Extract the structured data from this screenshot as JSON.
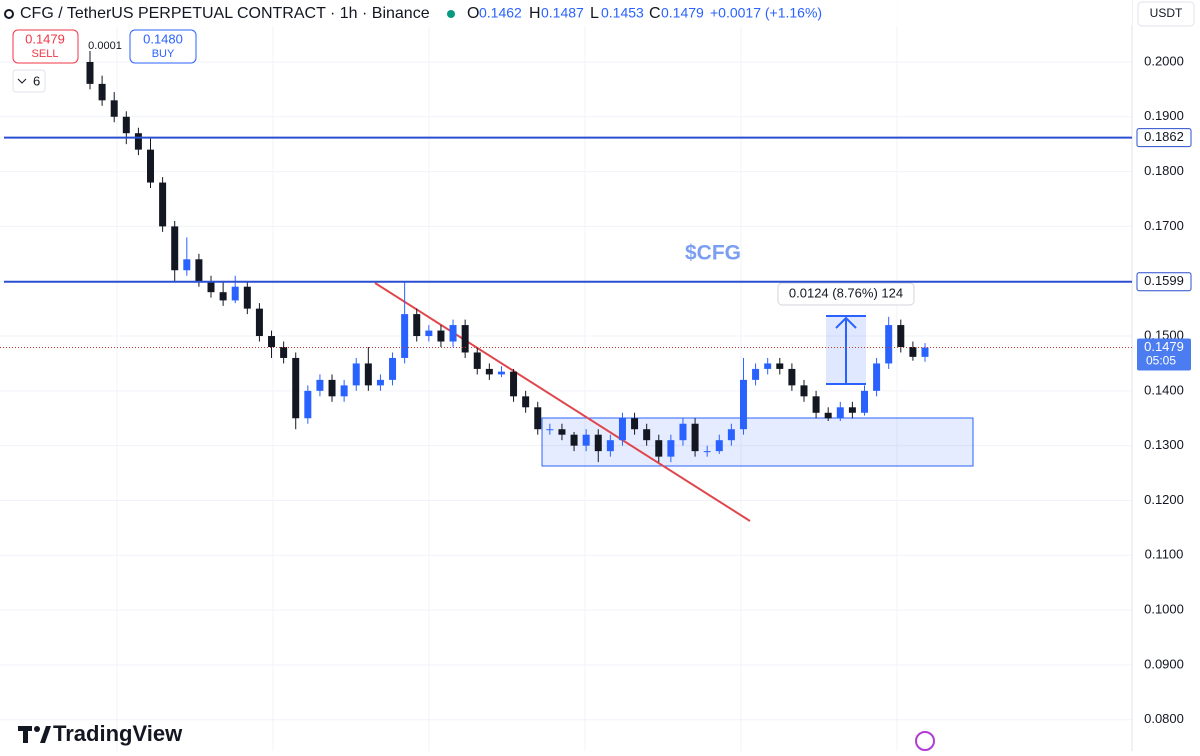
{
  "chart_data": {
    "type": "candlestick",
    "title": "CFG / TetherUS PERPETUAL CONTRACT · 1h · Binance",
    "ohlc_header": {
      "o_label": "O",
      "o": "0.1462",
      "h_label": "H",
      "h": "0.1487",
      "l_label": "L",
      "l": "0.1453",
      "c_label": "C",
      "c": "0.1479",
      "change": "+0.0017 (+1.16%)"
    },
    "sell": {
      "price": "0.1479",
      "label": "SELL"
    },
    "buy": {
      "price": "0.1480",
      "label": "BUY"
    },
    "spread": "0.0001",
    "indicators_count": "6",
    "currency": "USDT",
    "annotation": "$CFG",
    "measure_label": "0.0124 (8.76%) 124",
    "brand": "TradingView",
    "up_color": "#2962ff",
    "down_color": "#131722",
    "open": [
      0.2,
      0.196,
      0.193,
      0.19,
      0.187,
      0.184,
      0.178,
      0.17,
      0.162,
      0.164,
      0.16,
      0.158,
      0.1565,
      0.159,
      0.155,
      0.15,
      0.148,
      0.146,
      0.135,
      0.14,
      0.142,
      0.139,
      0.141,
      0.145,
      0.141,
      0.142,
      0.146,
      0.154,
      0.15,
      0.151,
      0.149,
      0.152,
      0.147,
      0.144,
      0.143,
      0.1435,
      0.139,
      0.137,
      0.133,
      0.133,
      0.132,
      0.13,
      0.132,
      0.129,
      0.131,
      0.135,
      0.133,
      0.131,
      0.128,
      0.131,
      0.134,
      0.129,
      0.129,
      0.131,
      0.133,
      0.142,
      0.144,
      0.145,
      0.144,
      0.141,
      0.139,
      0.136,
      0.135,
      0.137,
      0.136,
      0.14,
      0.145,
      0.152,
      0.148,
      0.1462
    ],
    "high": [
      0.202,
      0.1975,
      0.1945,
      0.191,
      0.188,
      0.1862,
      0.179,
      0.171,
      0.168,
      0.165,
      0.161,
      0.16,
      0.161,
      0.16,
      0.156,
      0.151,
      0.149,
      0.147,
      0.141,
      0.143,
      0.143,
      0.142,
      0.146,
      0.148,
      0.143,
      0.147,
      0.1599,
      0.155,
      0.152,
      0.152,
      0.153,
      0.153,
      0.148,
      0.145,
      0.1445,
      0.144,
      0.14,
      0.138,
      0.134,
      0.134,
      0.1325,
      0.133,
      0.133,
      0.132,
      0.136,
      0.136,
      0.134,
      0.132,
      0.132,
      0.135,
      0.135,
      0.13,
      0.132,
      0.134,
      0.146,
      0.145,
      0.146,
      0.146,
      0.145,
      0.142,
      0.14,
      0.137,
      0.138,
      0.138,
      0.141,
      0.146,
      0.1535,
      0.153,
      0.149,
      0.1487
    ],
    "low": [
      0.195,
      0.192,
      0.189,
      0.185,
      0.183,
      0.177,
      0.169,
      0.16,
      0.161,
      0.159,
      0.157,
      0.1555,
      0.156,
      0.154,
      0.149,
      0.146,
      0.145,
      0.133,
      0.134,
      0.139,
      0.138,
      0.138,
      0.14,
      0.14,
      0.14,
      0.141,
      0.145,
      0.149,
      0.149,
      0.148,
      0.148,
      0.146,
      0.143,
      0.142,
      0.1425,
      0.138,
      0.136,
      0.132,
      0.132,
      0.131,
      0.129,
      0.129,
      0.127,
      0.128,
      0.13,
      0.132,
      0.13,
      0.127,
      0.127,
      0.13,
      0.128,
      0.128,
      0.1285,
      0.13,
      0.132,
      0.141,
      0.143,
      0.143,
      0.14,
      0.138,
      0.135,
      0.1345,
      0.1345,
      0.135,
      0.1355,
      0.139,
      0.144,
      0.147,
      0.1455,
      0.1453
    ],
    "close": [
      0.196,
      0.193,
      0.19,
      0.187,
      0.184,
      0.178,
      0.17,
      0.162,
      0.164,
      0.16,
      0.158,
      0.1565,
      0.159,
      0.155,
      0.15,
      0.148,
      0.146,
      0.135,
      0.14,
      0.142,
      0.139,
      0.141,
      0.145,
      0.141,
      0.142,
      0.146,
      0.154,
      0.15,
      0.151,
      0.149,
      0.152,
      0.147,
      0.144,
      0.143,
      0.1435,
      0.139,
      0.137,
      0.133,
      0.133,
      0.132,
      0.13,
      0.132,
      0.129,
      0.131,
      0.135,
      0.133,
      0.131,
      0.128,
      0.131,
      0.134,
      0.129,
      0.129,
      0.131,
      0.133,
      0.142,
      0.144,
      0.145,
      0.144,
      0.141,
      0.139,
      0.136,
      0.135,
      0.137,
      0.136,
      0.14,
      0.145,
      0.152,
      0.148,
      0.1462,
      0.1479
    ],
    "ylim": [
      0.0743,
      0.2113
    ],
    "yticks": [
      {
        "value": 0.08,
        "label": "0.0800"
      },
      {
        "value": 0.09,
        "label": "0.0900"
      },
      {
        "value": 0.1,
        "label": "0.1000"
      },
      {
        "value": 0.11,
        "label": "0.1100"
      },
      {
        "value": 0.12,
        "label": "0.1200"
      },
      {
        "value": 0.13,
        "label": "0.1300"
      },
      {
        "value": 0.14,
        "label": "0.1400"
      },
      {
        "value": 0.15,
        "label": "0.1500"
      },
      {
        "value": 0.16,
        "label": "0.1600"
      },
      {
        "value": 0.17,
        "label": "0.1700"
      },
      {
        "value": 0.18,
        "label": "0.1800"
      },
      {
        "value": 0.19,
        "label": "0.1900"
      },
      {
        "value": 0.2,
        "label": "0.2000"
      }
    ],
    "grid": true,
    "price_lines": [
      {
        "value": 0.1862,
        "label": "0.1862"
      },
      {
        "value": 0.1599,
        "label": "0.1599"
      }
    ],
    "last_price": {
      "value": 0.1479,
      "label": "0.1479",
      "countdown": "05:05"
    }
  }
}
